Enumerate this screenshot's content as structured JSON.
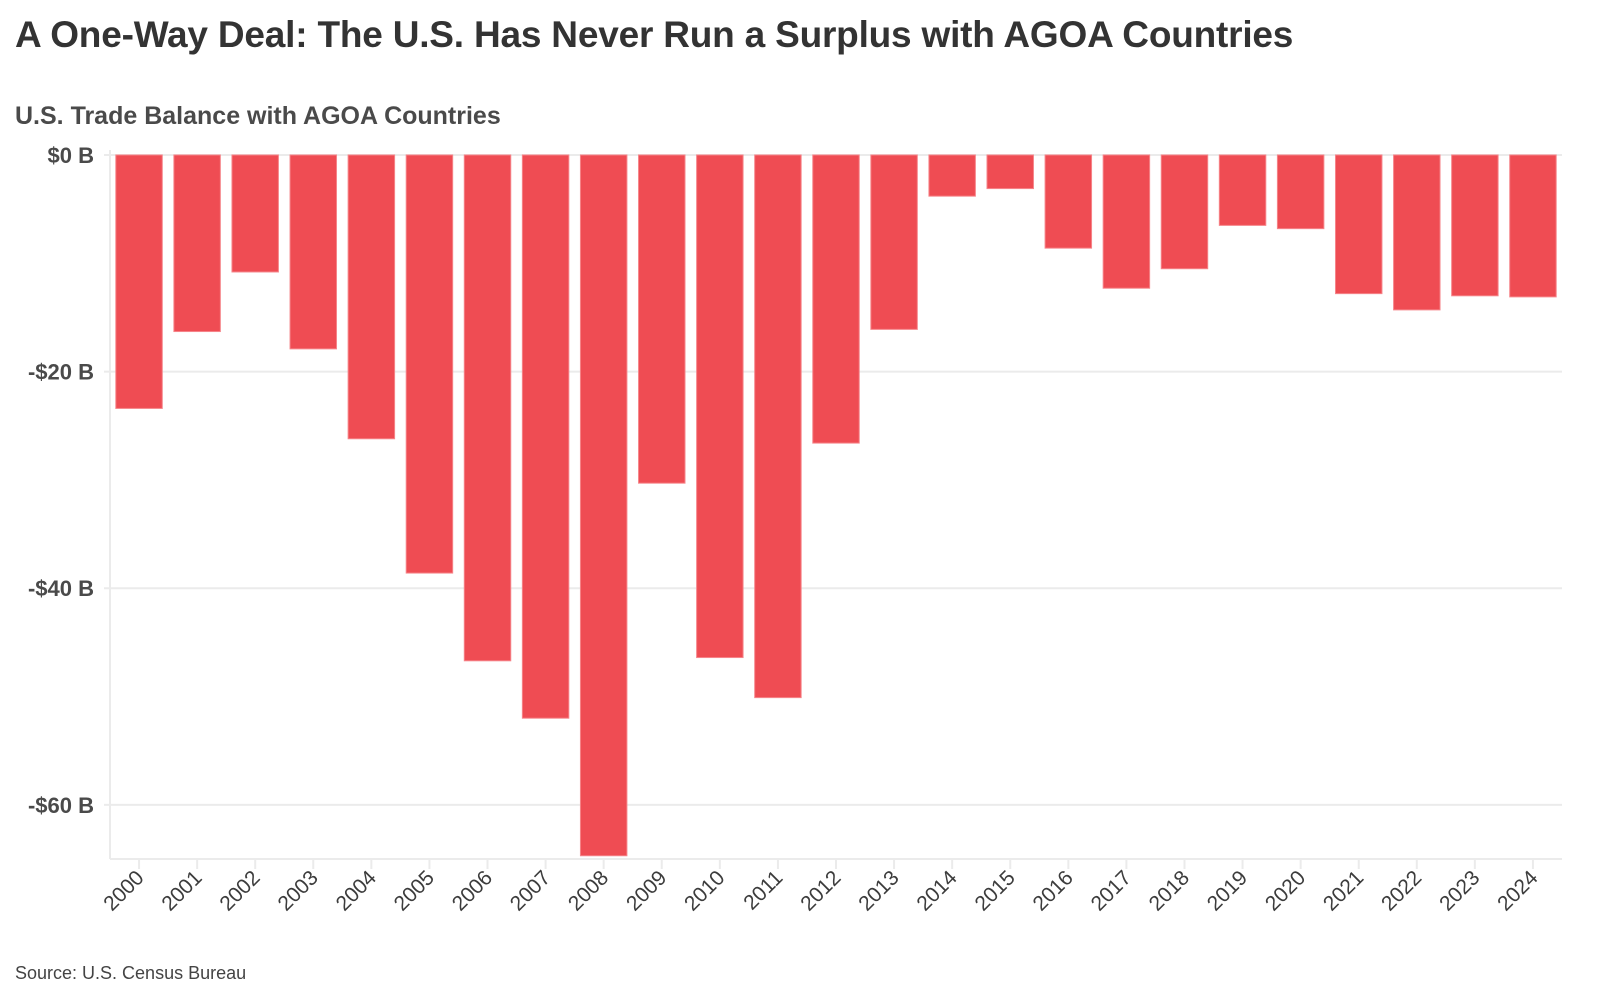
{
  "header": {
    "title": "A One-Way Deal: The U.S. Has Never Run a Surplus with AGOA Countries",
    "subtitle": "U.S. Trade Balance with AGOA Countries"
  },
  "footer": {
    "source": "Source: U.S. Census Bureau"
  },
  "colors": {
    "bar": "#EF4C53",
    "bar_border": "#F6858A",
    "grid": "#EBEBEB",
    "text": "#333333"
  },
  "chart_data": {
    "type": "bar",
    "title": "A One-Way Deal: The U.S. Has Never Run a Surplus with AGOA Countries",
    "subtitle": "U.S. Trade Balance with AGOA Countries",
    "xlabel": "",
    "ylabel": "",
    "unit": "billion USD",
    "categories": [
      "2000",
      "2001",
      "2002",
      "2003",
      "2004",
      "2005",
      "2006",
      "2007",
      "2008",
      "2009",
      "2010",
      "2011",
      "2012",
      "2013",
      "2014",
      "2015",
      "2016",
      "2017",
      "2018",
      "2019",
      "2020",
      "2021",
      "2022",
      "2023",
      "2024"
    ],
    "values": [
      -23.4,
      -16.3,
      -10.8,
      -17.9,
      -26.2,
      -38.6,
      -46.7,
      -52.0,
      -64.7,
      -30.3,
      -46.4,
      -50.1,
      -26.6,
      -16.1,
      -3.8,
      -3.1,
      -8.6,
      -12.3,
      -10.5,
      -6.5,
      -6.8,
      -12.8,
      -14.3,
      -13.0,
      -13.1
    ],
    "ylim": [
      -65,
      0
    ],
    "yticks": [
      0,
      -20,
      -40,
      -60
    ],
    "ytick_labels": [
      "$0 B",
      "-$20 B",
      "-$40 B",
      "-$60 B"
    ],
    "grid": true,
    "legend": "none",
    "source": "Source: U.S. Census Bureau"
  }
}
